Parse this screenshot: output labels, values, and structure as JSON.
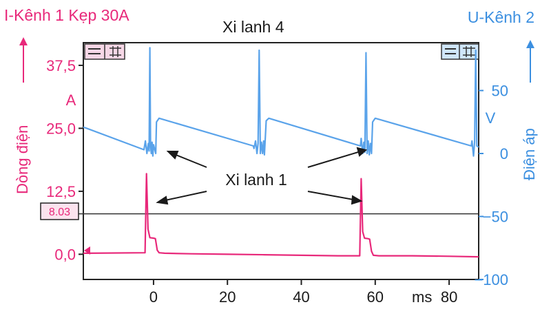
{
  "chart_data": {
    "type": "line",
    "title_left": "I-Kênh 1 Kẹp 30A",
    "title_center": "Xi lanh 4",
    "title_right": "U-Kênh 2",
    "ylabel_left": "Dòng điện",
    "ylabel_right": "Điện áp",
    "unit_left": "A",
    "unit_right": "V",
    "xlabel": "ms",
    "x_ticks": [
      "0",
      "20",
      "40",
      "60",
      "80"
    ],
    "y_left_ticks": [
      "37,5",
      "25,0",
      "12,5",
      "0,0"
    ],
    "y_right_ticks": [
      "50",
      "0",
      "−50",
      "−100"
    ],
    "xlim": [
      -19,
      88
    ],
    "ylim_left": [
      -5,
      42
    ],
    "ylim_right": [
      -100,
      88
    ],
    "cursor_value": "8.03",
    "cursor_level": 8.03,
    "annotation": "Xi lanh 1",
    "series": [
      {
        "name": "I-Kênh 1",
        "axis": "left",
        "color": "#e8287a",
        "x": [
          -19,
          -2.3,
          -1.9,
          -1.5,
          -1.0,
          0.0,
          0.5,
          1.0,
          1.5,
          3,
          10,
          20,
          30,
          40,
          50,
          55.8,
          56.2,
          56.6,
          57.1,
          58.0,
          58.5,
          59.0,
          59.5,
          61,
          70,
          80,
          88
        ],
        "values": [
          0.2,
          0.3,
          16.0,
          5.0,
          3.3,
          3.2,
          3.1,
          0.8,
          0.3,
          0.2,
          0.1,
          0.0,
          -0.1,
          -0.2,
          -0.3,
          -0.3,
          15.0,
          4.5,
          3.2,
          3.1,
          3.0,
          0.6,
          -0.2,
          -0.3,
          -0.3,
          -0.4,
          -0.5
        ]
      },
      {
        "name": "U-Kênh 2",
        "axis": "right",
        "color": "#5aa3ea",
        "x": [
          -19,
          -2.6,
          -2.2,
          -1.8,
          -1.4,
          -1.2,
          -1.0,
          -0.8,
          -0.6,
          -0.4,
          -0.2,
          0.0,
          0.6,
          0.8,
          1.5,
          27.0,
          27.2,
          27.6,
          28.0,
          28.3,
          28.6,
          28.9,
          29.2,
          29.5,
          29.8,
          30.0,
          30.5,
          31.2,
          56.0,
          56.2,
          56.6,
          56.9,
          57.2,
          57.5,
          57.8,
          58.1,
          58.4,
          58.7,
          59.0,
          59.3,
          60.0,
          86.0,
          86.2,
          86.6,
          86.9,
          87.2,
          87.5,
          88
        ],
        "values": [
          21,
          3,
          10,
          0,
          8,
          2,
          84,
          6,
          0,
          9,
          -2,
          7,
          0,
          25,
          28,
          6,
          4,
          10,
          0,
          8,
          82,
          0,
          9,
          0,
          10,
          -1,
          26,
          28,
          6,
          12,
          0,
          9,
          1,
          80,
          0,
          10,
          -1,
          8,
          0,
          25,
          28,
          6,
          10,
          -2,
          9,
          82,
          6,
          5
        ]
      }
    ]
  }
}
